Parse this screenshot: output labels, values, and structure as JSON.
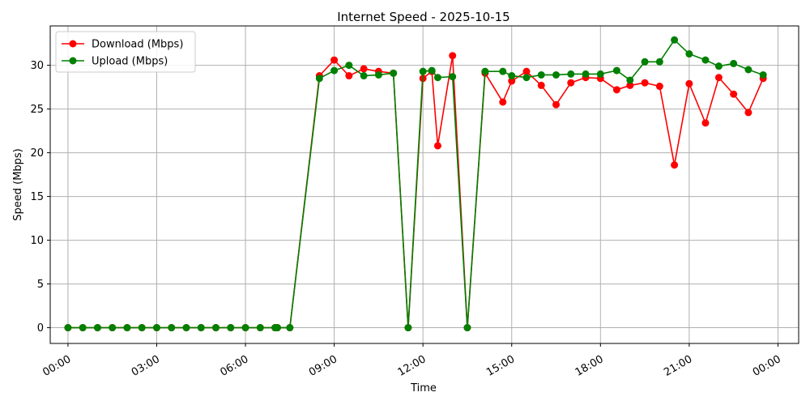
{
  "chart_data": {
    "type": "line",
    "title": "Internet Speed - 2025-10-15",
    "xlabel": "Time",
    "ylabel": "Speed (Mbps)",
    "xlim_hours": [
      -0.6,
      24.7
    ],
    "ylim": [
      -1.8,
      34.5
    ],
    "x_ticks": [
      {
        "hour": 0,
        "label": "00:00"
      },
      {
        "hour": 3,
        "label": "03:00"
      },
      {
        "hour": 6,
        "label": "06:00"
      },
      {
        "hour": 9,
        "label": "09:00"
      },
      {
        "hour": 12,
        "label": "12:00"
      },
      {
        "hour": 15,
        "label": "15:00"
      },
      {
        "hour": 18,
        "label": "18:00"
      },
      {
        "hour": 21,
        "label": "21:00"
      },
      {
        "hour": 24,
        "label": "00:00"
      }
    ],
    "y_ticks": [
      0,
      5,
      10,
      15,
      20,
      25,
      30
    ],
    "grid": true,
    "legend_position": "top-left",
    "x_hours": [
      0,
      0.5,
      1,
      1.5,
      2,
      2.5,
      3,
      3.5,
      4,
      4.5,
      5,
      5.5,
      6,
      6.5,
      7,
      7.08,
      7.5,
      8.5,
      9,
      9.5,
      10,
      10.5,
      11,
      11.5,
      12,
      12.3,
      12.5,
      13,
      13.5,
      14.1,
      14.7,
      15,
      15.5,
      16,
      16.5,
      17,
      17.5,
      18,
      18.55,
      19,
      19.5,
      20,
      20.5,
      21,
      21.55,
      22,
      22.5,
      23,
      23.5
    ],
    "series": [
      {
        "name": "Download (Mbps)",
        "color": "#ff0000",
        "values": [
          0,
          0,
          0,
          0,
          0,
          0,
          0,
          0,
          0,
          0,
          0,
          0,
          0,
          0,
          0,
          0,
          0,
          28.8,
          30.6,
          28.8,
          29.6,
          29.3,
          29.1,
          0,
          28.5,
          29.3,
          20.8,
          31.1,
          0,
          29.1,
          25.8,
          28.2,
          29.3,
          27.7,
          25.5,
          28.0,
          28.6,
          28.5,
          27.2,
          27.7,
          28.0,
          27.6,
          18.6,
          27.9,
          23.4,
          28.6,
          26.7,
          24.6,
          28.5
        ]
      },
      {
        "name": "Upload (Mbps)",
        "color": "#008000",
        "values": [
          0,
          0,
          0,
          0,
          0,
          0,
          0,
          0,
          0,
          0,
          0,
          0,
          0,
          0,
          0,
          0,
          0,
          28.5,
          29.4,
          30.0,
          28.8,
          28.9,
          29.1,
          0,
          29.3,
          29.4,
          28.6,
          28.7,
          0,
          29.3,
          29.3,
          28.8,
          28.6,
          28.9,
          28.9,
          29.0,
          29.0,
          29.0,
          29.4,
          28.3,
          30.4,
          30.4,
          32.9,
          31.3,
          30.6,
          29.9,
          30.2,
          29.5,
          28.9
        ]
      }
    ]
  }
}
